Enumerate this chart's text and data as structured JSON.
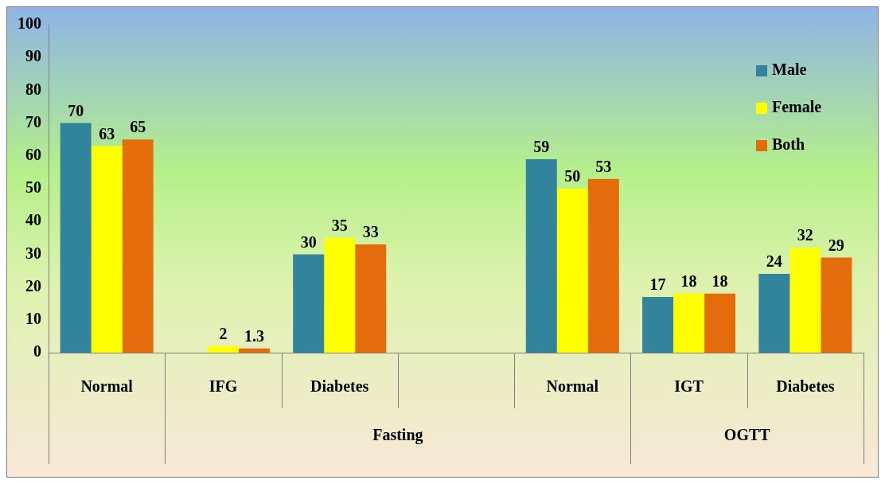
{
  "chart_data": {
    "type": "bar",
    "categories": [
      "Normal",
      "IFG",
      "Diabetes",
      null,
      "Normal",
      "IGT",
      "Diabetes"
    ],
    "series": [
      {
        "name": "Male",
        "color": "#31849b",
        "values": [
          70,
          null,
          30,
          null,
          59,
          17,
          24
        ]
      },
      {
        "name": "Female",
        "color": "#ffff00",
        "values": [
          63,
          2,
          35,
          null,
          50,
          18,
          32
        ]
      },
      {
        "name": "Both",
        "color": "#e46c0a",
        "values": [
          65,
          1.3,
          33,
          null,
          53,
          18,
          29
        ]
      }
    ],
    "ylim": [
      0,
      100
    ],
    "yticks": [
      0,
      10,
      20,
      30,
      40,
      50,
      60,
      70,
      80,
      90,
      100
    ],
    "grid": false,
    "legend": "top right",
    "data_labels": true,
    "annotations": [
      "Fasting",
      "OGTT"
    ]
  }
}
